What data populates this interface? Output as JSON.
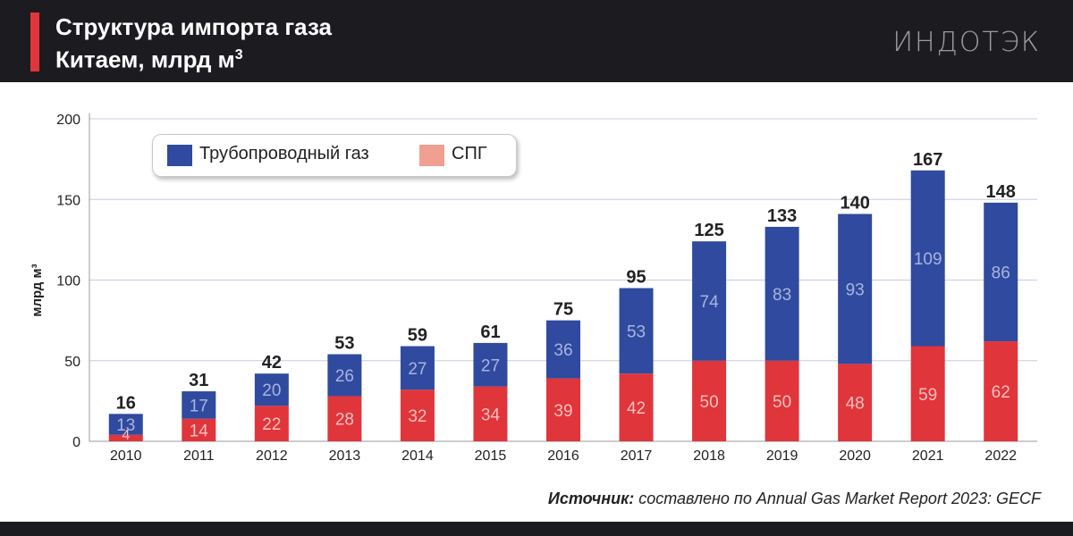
{
  "header": {
    "title_line1": "Структура импорта газа",
    "title_line2": "Китаем, млрд м",
    "title_sup": "3",
    "logo": "ИНДОТЭК"
  },
  "legend": {
    "pipeline_label": "Трубопроводный газ",
    "lng_label": "СПГ"
  },
  "source": {
    "label": "Источник:",
    "text": " составлено по Annual Gas Market Report 2023: GECF"
  },
  "colors": {
    "pipeline": "#2f4a9e",
    "lng": "#e0353b",
    "legend_lng": "#f0a090",
    "accent": "#e0353b",
    "background": "#1c1c20"
  },
  "chart_data": {
    "type": "bar",
    "stacked": true,
    "title": "Структура импорта газа Китаем, млрд м3",
    "xlabel": "",
    "ylabel": "млрд м³",
    "ylim": [
      0,
      200
    ],
    "yticks": [
      0,
      50,
      100,
      150,
      200
    ],
    "categories": [
      "2010",
      "2011",
      "2012",
      "2013",
      "2014",
      "2015",
      "2016",
      "2017",
      "2018",
      "2019",
      "2020",
      "2021",
      "2022"
    ],
    "series": [
      {
        "name": "СПГ",
        "values": [
          4,
          14,
          22,
          28,
          32,
          34,
          39,
          42,
          50,
          50,
          48,
          59,
          62
        ]
      },
      {
        "name": "Трубопроводный газ",
        "values": [
          13,
          17,
          20,
          26,
          27,
          27,
          36,
          53,
          74,
          83,
          93,
          109,
          86
        ]
      }
    ],
    "totals": [
      16,
      31,
      42,
      53,
      59,
      61,
      75,
      95,
      125,
      133,
      140,
      167,
      148
    ],
    "grid": true,
    "legend": "top-left"
  }
}
